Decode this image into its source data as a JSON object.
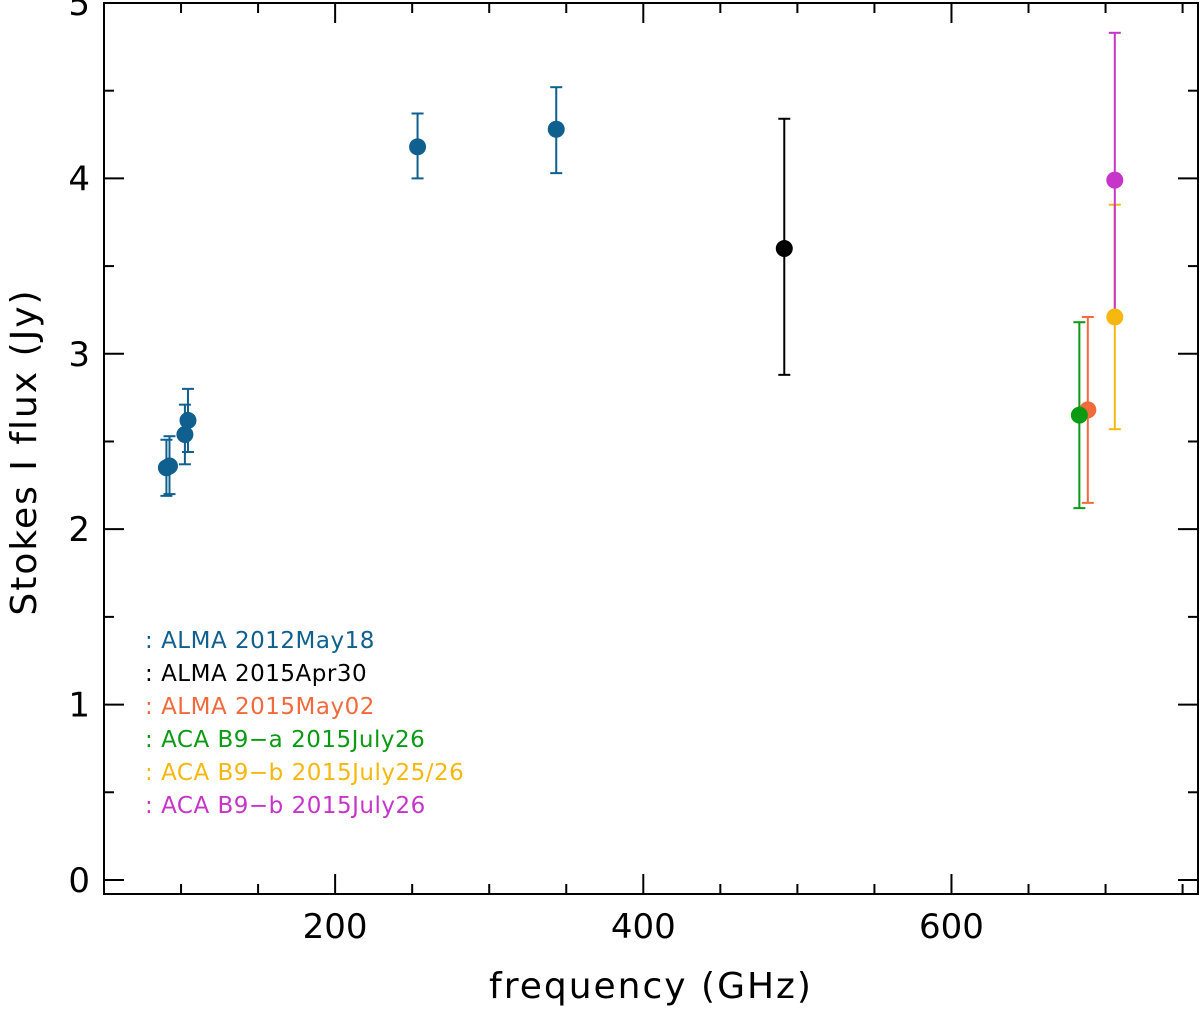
{
  "chart_data": {
    "type": "scatter",
    "title": "",
    "xlabel": "frequency (GHz)",
    "ylabel": "Stokes I flux (Jy)",
    "xlim": [
      50,
      760
    ],
    "ylim": [
      -0.08,
      5.0
    ],
    "grid": false,
    "legend_position": "lower-left",
    "x_ticks": [
      {
        "value": 200,
        "label": "200"
      },
      {
        "value": 400,
        "label": "400"
      },
      {
        "value": 600,
        "label": "600"
      }
    ],
    "x_minor_ticks": [
      100,
      150,
      250,
      300,
      350,
      450,
      500,
      550,
      650,
      700,
      750
    ],
    "y_ticks": [
      {
        "value": 0,
        "label": "0"
      },
      {
        "value": 1,
        "label": "1"
      },
      {
        "value": 2,
        "label": "2"
      },
      {
        "value": 3,
        "label": "3"
      },
      {
        "value": 4,
        "label": "4"
      },
      {
        "value": 5,
        "label": "5"
      }
    ],
    "y_minor_ticks": [
      0.5,
      1.5,
      2.5,
      3.5,
      4.5
    ],
    "series": [
      {
        "name": "ALMA 2012May18",
        "color": "#0f5f8f",
        "points": [
          {
            "x": 90.5,
            "y": 2.35,
            "ylo": 2.19,
            "yhi": 2.51
          },
          {
            "x": 92.5,
            "y": 2.36,
            "ylo": 2.2,
            "yhi": 2.53
          },
          {
            "x": 102.5,
            "y": 2.54,
            "ylo": 2.37,
            "yhi": 2.71
          },
          {
            "x": 104.5,
            "y": 2.62,
            "ylo": 2.44,
            "yhi": 2.8
          },
          {
            "x": 253.5,
            "y": 4.18,
            "ylo": 4.0,
            "yhi": 4.37
          },
          {
            "x": 343.5,
            "y": 4.28,
            "ylo": 4.03,
            "yhi": 4.52
          }
        ]
      },
      {
        "name": "ALMA 2015Apr30",
        "color": "#000000",
        "points": [
          {
            "x": 491.5,
            "y": 3.6,
            "ylo": 2.88,
            "yhi": 4.34
          }
        ]
      },
      {
        "name": "ALMA 2015May02",
        "color": "#f26a3b",
        "points": [
          {
            "x": 688.5,
            "y": 2.68,
            "ylo": 2.15,
            "yhi": 3.21
          }
        ]
      },
      {
        "name": "ACA B9-a 2015July26",
        "color": "#0b9a13",
        "points": [
          {
            "x": 683.0,
            "y": 2.65,
            "ylo": 2.12,
            "yhi": 3.18
          }
        ]
      },
      {
        "name": "ACA B9-b 2015July25/26",
        "color": "#f6b70f",
        "points": [
          {
            "x": 706.0,
            "y": 3.21,
            "ylo": 2.57,
            "yhi": 3.85
          }
        ]
      },
      {
        "name": "ACA B9-b 2015July26",
        "color": "#c634c9",
        "points": [
          {
            "x": 706.0,
            "y": 3.99,
            "ylo": 3.18,
            "yhi": 4.83
          }
        ]
      }
    ],
    "legend_entries": [
      {
        "prefix": ":",
        "label": "ALMA 2012May18",
        "color": "#0f5f8f"
      },
      {
        "prefix": ":",
        "label": "ALMA 2015Apr30",
        "color": "#000000"
      },
      {
        "prefix": ":",
        "label": "ALMA 2015May02",
        "color": "#f26a3b"
      },
      {
        "prefix": ":",
        "label": "ACA B9−a 2015July26",
        "color": "#0b9a13"
      },
      {
        "prefix": ":",
        "label": "ACA B9−b 2015July25/26",
        "color": "#f6b70f"
      },
      {
        "prefix": ":",
        "label": "ACA B9−b 2015July26",
        "color": "#c634c9"
      }
    ]
  }
}
